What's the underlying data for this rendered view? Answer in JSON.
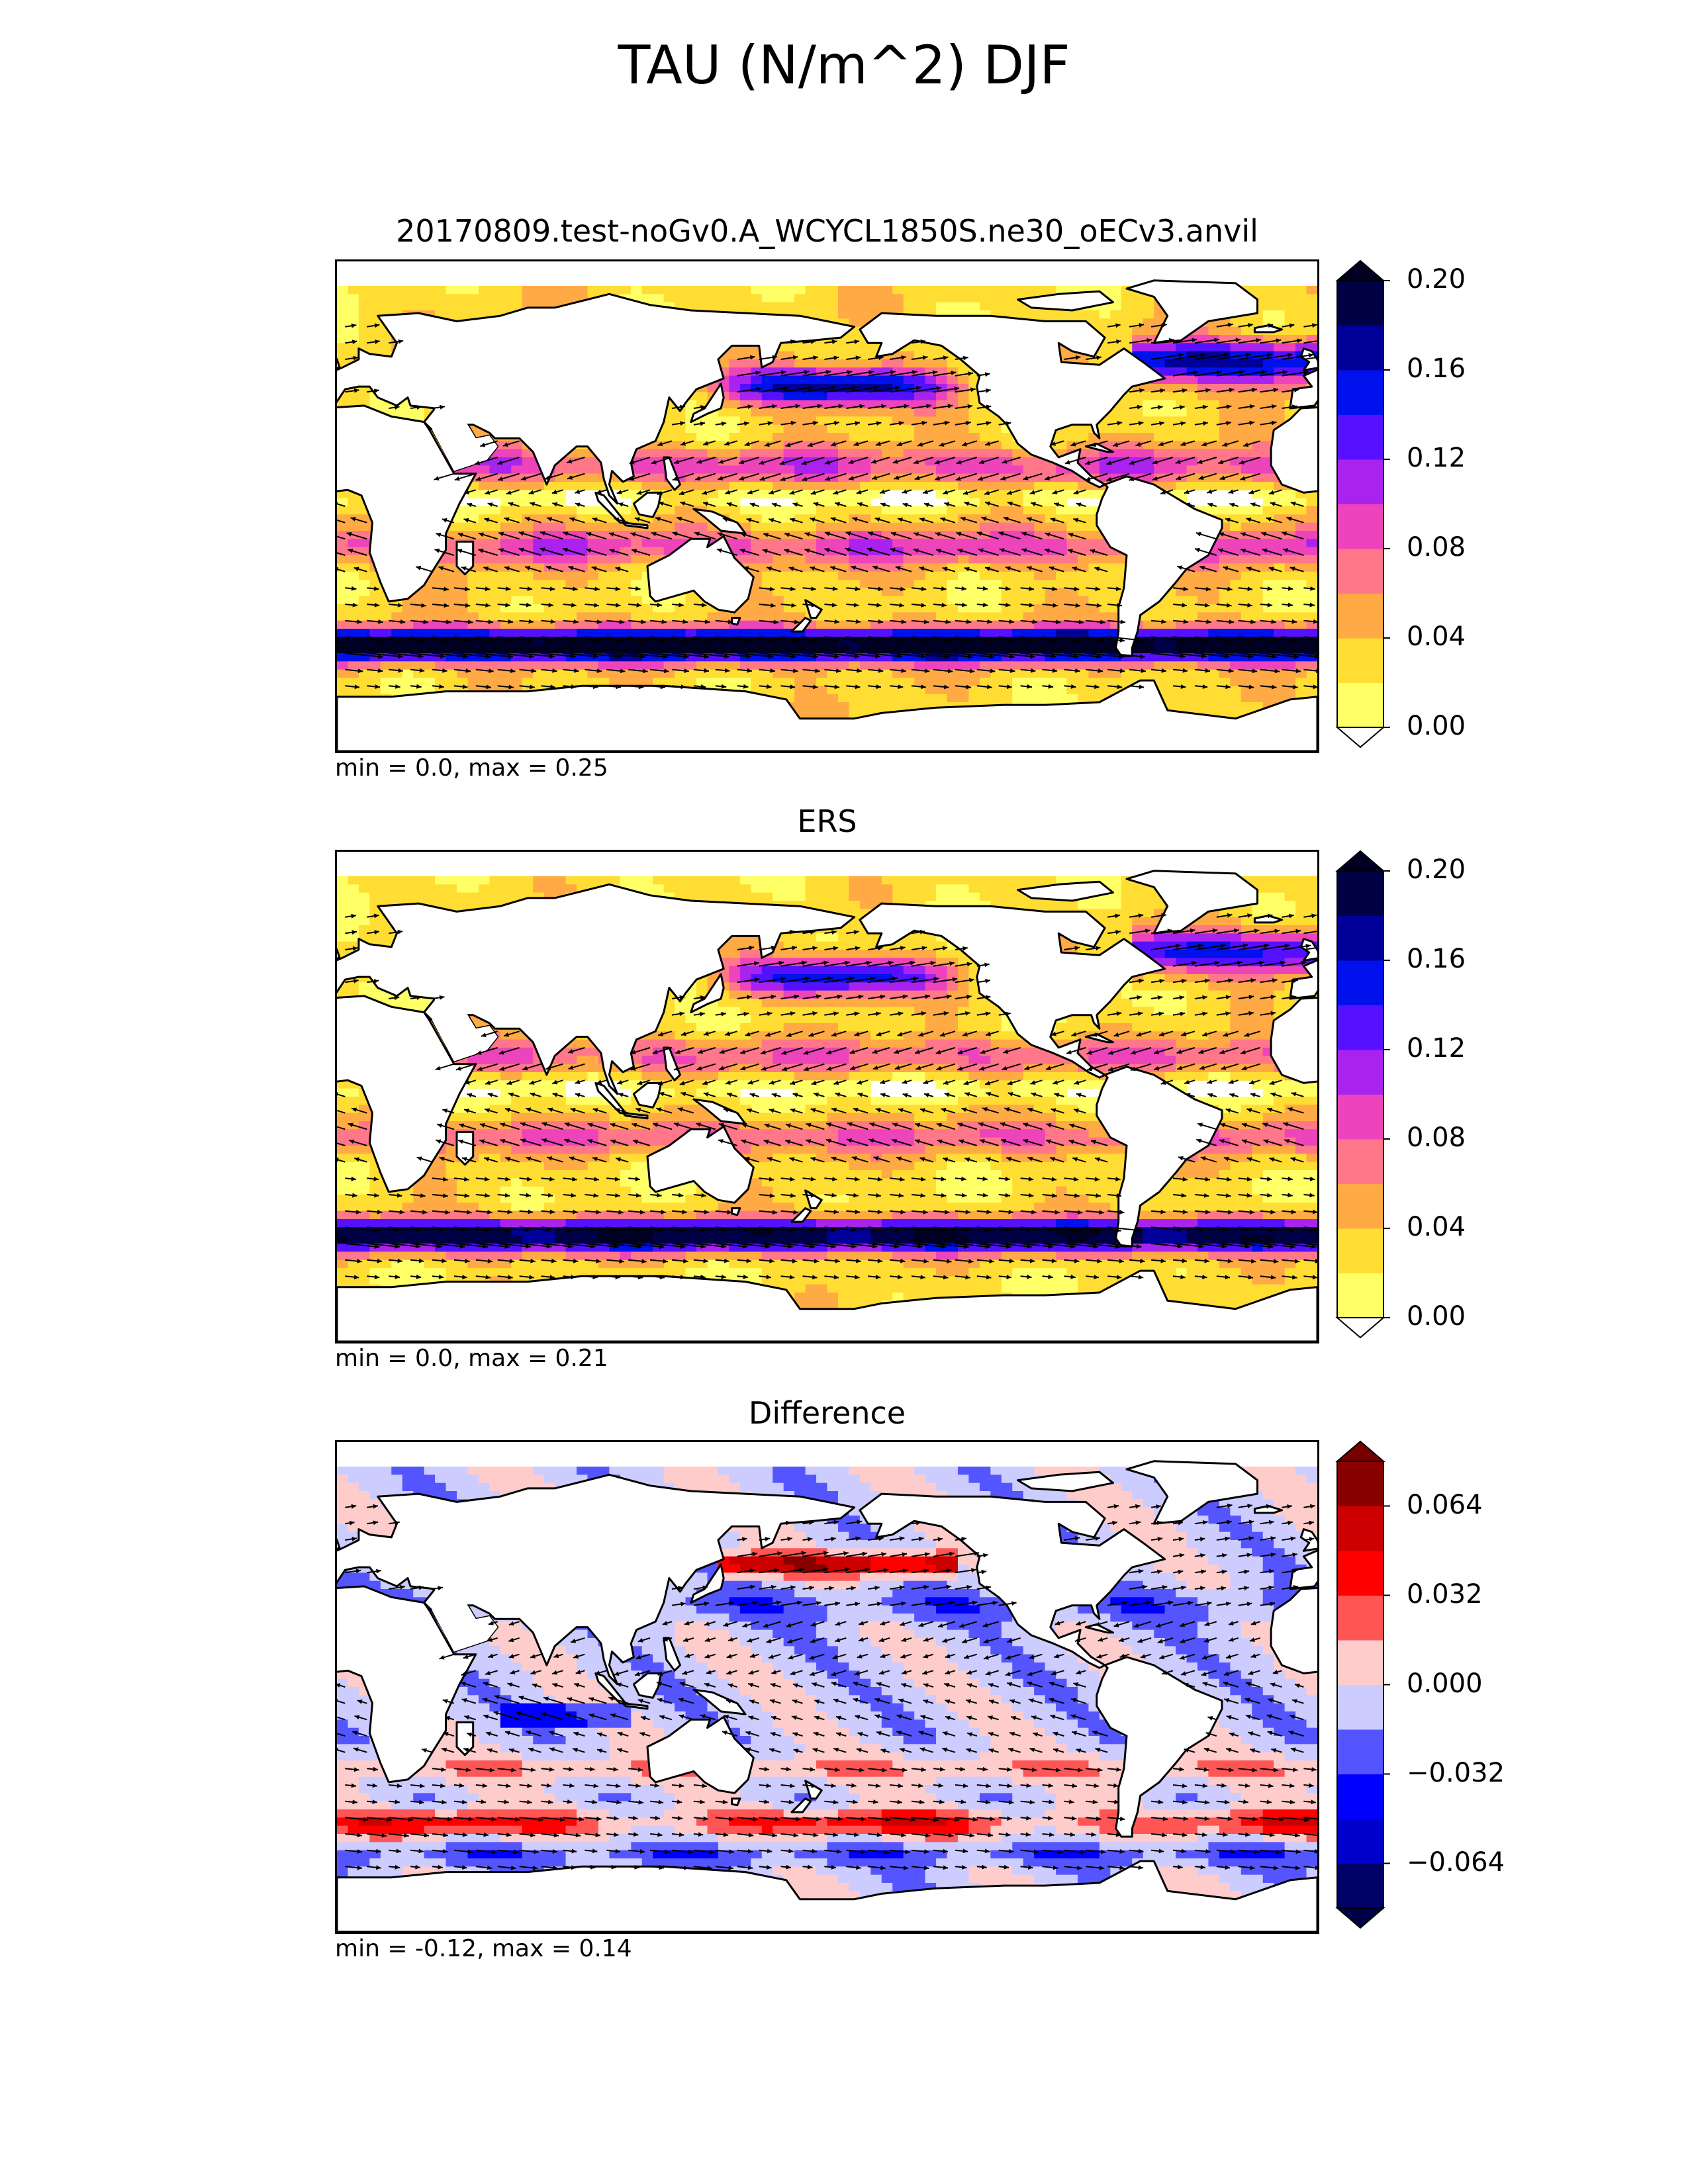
{
  "suptitle": "TAU (N/m^2) DJF",
  "colors": {
    "sequential": [
      "#ffff66",
      "#ffdd33",
      "#ffaa44",
      "#ff7788",
      "#ee44bb",
      "#aa22ee",
      "#5511ff",
      "#0011ee",
      "#000099",
      "#000044"
    ],
    "sequential_under": "#ffffff",
    "sequential_over": "#000022",
    "diverging": [
      "#000066",
      "#0000cc",
      "#0000ff",
      "#5555ff",
      "#ccccff",
      "#ffcccc",
      "#ff5555",
      "#ff0000",
      "#cc0000",
      "#880000"
    ],
    "diverging_under": "#000044",
    "diverging_over": "#770000",
    "land": "#ffffff",
    "coast": "#000000"
  },
  "chart_data": [
    {
      "type": "heatmap",
      "title": "20170809.test-noGv0.A_WCYCL1850S.ne30_oECv3.anvil",
      "stats": "min = 0.0, max = 0.25",
      "colorbar": {
        "levels": [
          0.0,
          0.02,
          0.04,
          0.06,
          0.08,
          0.1,
          0.12,
          0.14,
          0.16,
          0.18,
          0.2
        ],
        "ticks": [
          0.0,
          0.04,
          0.08,
          0.12,
          0.16,
          0.2
        ],
        "tick_labels": [
          "0.00",
          "0.04",
          "0.08",
          "0.12",
          "0.16",
          "0.20"
        ],
        "extend": "both"
      },
      "vectors": true,
      "map": "global, 0-360 longitude, 90S-90N"
    },
    {
      "type": "heatmap",
      "title": "ERS",
      "stats": "min = 0.0, max = 0.21",
      "colorbar": {
        "levels": [
          0.0,
          0.02,
          0.04,
          0.06,
          0.08,
          0.1,
          0.12,
          0.14,
          0.16,
          0.18,
          0.2
        ],
        "ticks": [
          0.0,
          0.04,
          0.08,
          0.12,
          0.16,
          0.2
        ],
        "tick_labels": [
          "0.00",
          "0.04",
          "0.08",
          "0.12",
          "0.16",
          "0.20"
        ],
        "extend": "both"
      },
      "vectors": true,
      "map": "global, 0-360 longitude, 90S-90N"
    },
    {
      "type": "heatmap",
      "title": "Difference",
      "stats": "min = -0.12, max = 0.14",
      "colorbar": {
        "levels": [
          -0.08,
          -0.064,
          -0.048,
          -0.032,
          -0.016,
          0.0,
          0.016,
          0.032,
          0.048,
          0.064,
          0.08
        ],
        "ticks": [
          -0.064,
          -0.032,
          0.0,
          0.032,
          0.064
        ],
        "tick_labels": [
          "−0.064",
          "−0.032",
          "0.000",
          "0.032",
          "0.064"
        ],
        "extend": "both"
      },
      "vectors": true,
      "map": "global, 0-360 longitude, 90S-90N"
    }
  ]
}
